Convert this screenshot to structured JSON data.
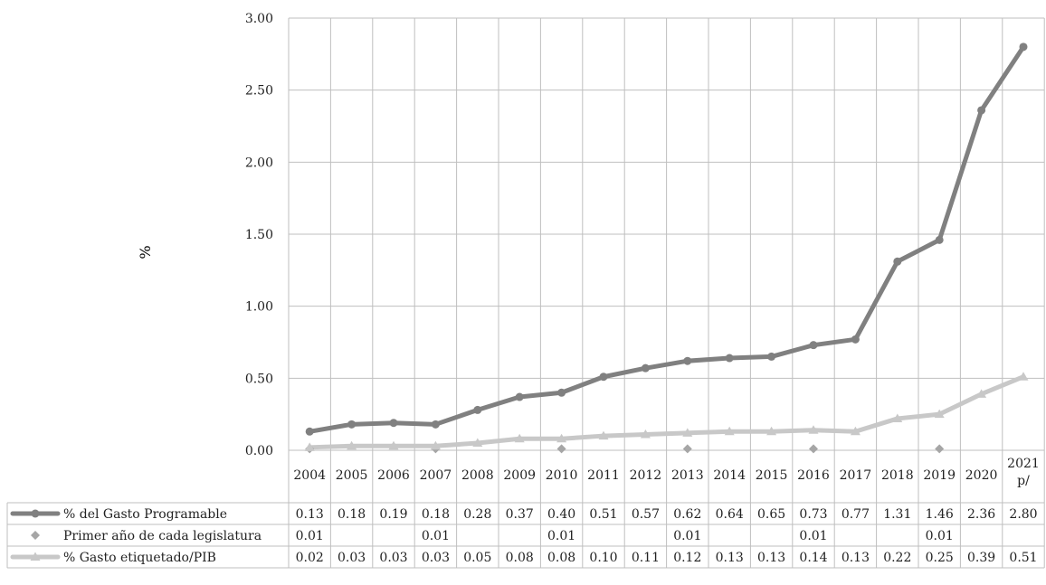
{
  "chart_data": {
    "type": "line",
    "title": "",
    "xlabel": "",
    "ylabel": "%",
    "ylim": [
      0,
      3
    ],
    "yticks": [
      "0.00",
      "0.50",
      "1.00",
      "1.50",
      "2.00",
      "2.50",
      "3.00"
    ],
    "grid": true,
    "categories": [
      [
        "2004"
      ],
      [
        "2005"
      ],
      [
        "2006"
      ],
      [
        "2007"
      ],
      [
        "2008"
      ],
      [
        "2009"
      ],
      [
        "2010"
      ],
      [
        "2011"
      ],
      [
        "2012"
      ],
      [
        "2013"
      ],
      [
        "2014"
      ],
      [
        "2015"
      ],
      [
        "2016"
      ],
      [
        "2017"
      ],
      [
        "2018"
      ],
      [
        "2019"
      ],
      [
        "2020"
      ],
      [
        "2021",
        "p/"
      ]
    ],
    "series": [
      {
        "name": "% del Gasto Programable",
        "color": "#808080",
        "marker": "circle",
        "values": [
          0.13,
          0.18,
          0.19,
          0.18,
          0.28,
          0.37,
          0.4,
          0.51,
          0.57,
          0.62,
          0.64,
          0.65,
          0.73,
          0.77,
          1.31,
          1.46,
          2.36,
          2.8
        ],
        "labels": [
          "0.13",
          "0.18",
          "0.19",
          "0.18",
          "0.28",
          "0.37",
          "0.40",
          "0.51",
          "0.57",
          "0.62",
          "0.64",
          "0.65",
          "0.73",
          "0.77",
          "1.31",
          "1.46",
          "2.36",
          "2.80"
        ]
      },
      {
        "name": "Primer año de cada legislatura",
        "color": "#a6a6a6",
        "marker": "diamond",
        "line": false,
        "values": [
          0.01,
          null,
          null,
          0.01,
          null,
          null,
          0.01,
          null,
          null,
          0.01,
          null,
          null,
          0.01,
          null,
          null,
          0.01,
          null,
          null
        ],
        "labels": [
          "0.01",
          "",
          "",
          "0.01",
          "",
          "",
          "0.01",
          "",
          "",
          "0.01",
          "",
          "",
          "0.01",
          "",
          "",
          "0.01",
          "",
          ""
        ]
      },
      {
        "name": "% Gasto etiquetado/PIB",
        "color": "#c8c8c8",
        "marker": "triangle",
        "values": [
          0.02,
          0.03,
          0.03,
          0.03,
          0.05,
          0.08,
          0.08,
          0.1,
          0.11,
          0.12,
          0.13,
          0.13,
          0.14,
          0.13,
          0.22,
          0.25,
          0.39,
          0.51
        ],
        "labels": [
          "0.02",
          "0.03",
          "0.03",
          "0.03",
          "0.05",
          "0.08",
          "0.08",
          "0.10",
          "0.11",
          "0.12",
          "0.13",
          "0.13",
          "0.14",
          "0.13",
          "0.22",
          "0.25",
          "0.39",
          "0.51"
        ]
      }
    ],
    "legend_placement": "data-table-rows"
  }
}
